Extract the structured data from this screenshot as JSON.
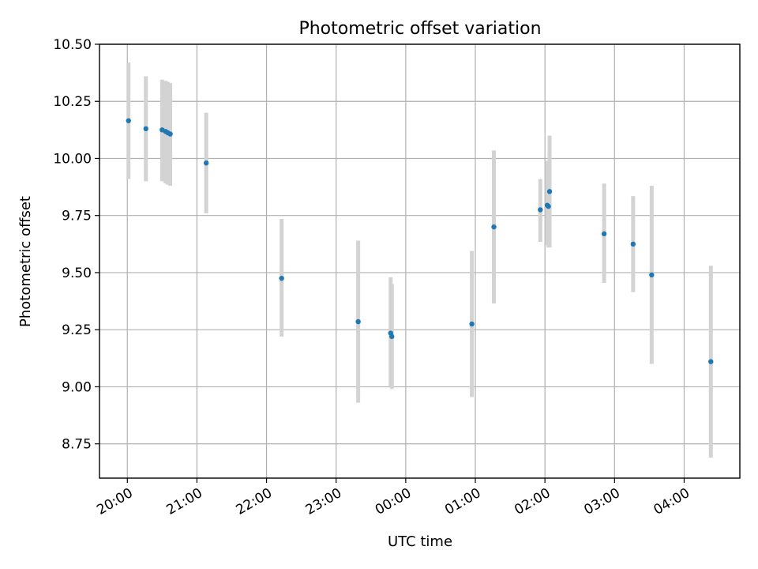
{
  "chart_data": {
    "type": "scatter",
    "title": "Photometric offset variation",
    "xlabel": "UTC time",
    "ylabel": "Photometric offset",
    "grid": true,
    "legend": "none",
    "x_axis": {
      "type": "time",
      "range": [
        "19:36",
        "04:48"
      ],
      "ticks": [
        "20:00",
        "21:00",
        "22:00",
        "23:00",
        "00:00",
        "01:00",
        "02:00",
        "03:00",
        "04:00"
      ]
    },
    "y_axis": {
      "range": [
        8.6,
        10.5
      ],
      "ticks": [
        "8.75",
        "9.00",
        "9.25",
        "9.50",
        "9.75",
        "10.00",
        "10.25",
        "10.50"
      ]
    },
    "colors": {
      "points": "#1f77b4",
      "error_bars": "#d3d3d3",
      "grid": "#b0b0b0"
    },
    "series": [
      {
        "points": [
          {
            "x": "20:01",
            "y": 10.165,
            "ylow": 9.91,
            "yhigh": 10.42
          },
          {
            "x": "20:16",
            "y": 10.13,
            "ylow": 9.9,
            "yhigh": 10.36
          },
          {
            "x": "20:30",
            "y": 10.125,
            "ylow": 9.9,
            "yhigh": 10.345
          },
          {
            "x": "20:33",
            "y": 10.118,
            "ylow": 9.89,
            "yhigh": 10.34
          },
          {
            "x": "20:35",
            "y": 10.112,
            "ylow": 9.885,
            "yhigh": 10.335
          },
          {
            "x": "20:37",
            "y": 10.107,
            "ylow": 9.88,
            "yhigh": 10.33
          },
          {
            "x": "21:08",
            "y": 9.98,
            "ylow": 9.76,
            "yhigh": 10.2
          },
          {
            "x": "22:13",
            "y": 9.475,
            "ylow": 9.22,
            "yhigh": 9.735
          },
          {
            "x": "23:19",
            "y": 9.285,
            "ylow": 8.93,
            "yhigh": 9.64
          },
          {
            "x": "23:47",
            "y": 9.235,
            "ylow": 9.0,
            "yhigh": 9.48
          },
          {
            "x": "23:48",
            "y": 9.22,
            "ylow": 8.99,
            "yhigh": 9.45
          },
          {
            "x": "00:57",
            "y": 9.275,
            "ylow": 8.955,
            "yhigh": 9.595
          },
          {
            "x": "01:16",
            "y": 9.7,
            "ylow": 9.365,
            "yhigh": 10.035
          },
          {
            "x": "01:56",
            "y": 9.775,
            "ylow": 9.635,
            "yhigh": 9.91
          },
          {
            "x": "02:02",
            "y": 9.795,
            "ylow": 9.62,
            "yhigh": 9.99
          },
          {
            "x": "02:03",
            "y": 9.79,
            "ylow": 9.61,
            "yhigh": 9.97
          },
          {
            "x": "02:04",
            "y": 9.855,
            "ylow": 9.61,
            "yhigh": 10.1
          },
          {
            "x": "02:51",
            "y": 9.67,
            "ylow": 9.455,
            "yhigh": 9.89
          },
          {
            "x": "03:16",
            "y": 9.625,
            "ylow": 9.415,
            "yhigh": 9.835
          },
          {
            "x": "03:32",
            "y": 9.49,
            "ylow": 9.1,
            "yhigh": 9.88
          },
          {
            "x": "04:23",
            "y": 9.11,
            "ylow": 8.69,
            "yhigh": 9.53
          }
        ]
      }
    ]
  }
}
